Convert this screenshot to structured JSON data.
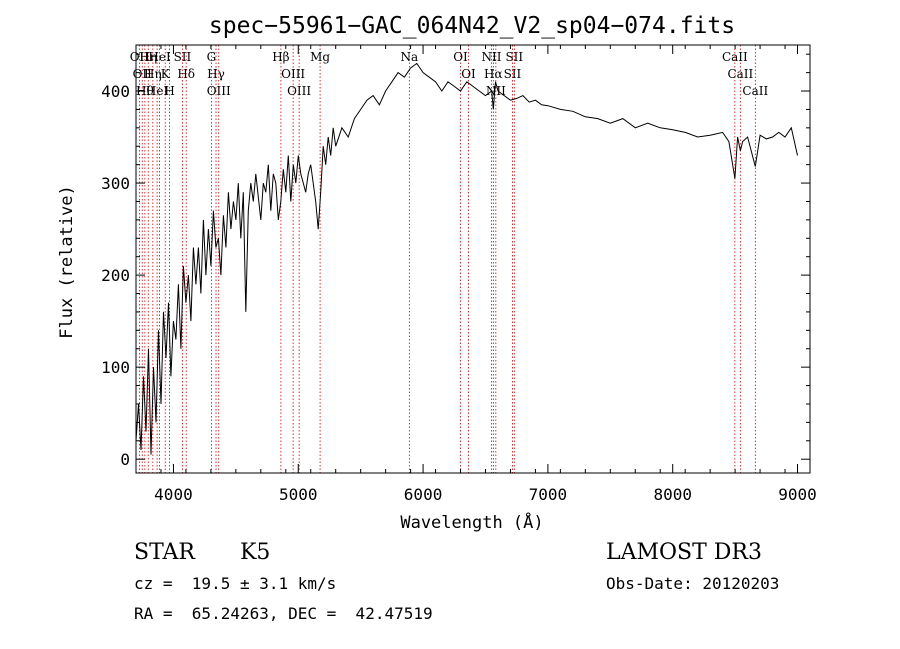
{
  "chart_data": {
    "type": "line",
    "title": "spec−55961−GAC_064N42_V2_sp04−074.fits",
    "xlabel": "Wavelength (Å)",
    "ylabel": "Flux (relative)",
    "xlim": [
      3700,
      9100
    ],
    "ylim": [
      -15,
      450
    ],
    "x_ticks": [
      4000,
      5000,
      6000,
      7000,
      8000,
      9000
    ],
    "y_ticks": [
      0,
      100,
      200,
      300,
      400
    ],
    "grid": false,
    "series": [
      {
        "name": "spectrum",
        "x": [
          3700,
          3720,
          3740,
          3760,
          3780,
          3800,
          3820,
          3840,
          3860,
          3880,
          3900,
          3920,
          3940,
          3960,
          3980,
          4000,
          4020,
          4040,
          4060,
          4080,
          4100,
          4120,
          4140,
          4160,
          4180,
          4200,
          4220,
          4240,
          4260,
          4280,
          4300,
          4320,
          4340,
          4360,
          4380,
          4400,
          4420,
          4440,
          4460,
          4480,
          4500,
          4520,
          4540,
          4560,
          4580,
          4600,
          4620,
          4640,
          4660,
          4680,
          4700,
          4720,
          4740,
          4760,
          4780,
          4800,
          4820,
          4840,
          4860,
          4880,
          4900,
          4920,
          4940,
          4960,
          4980,
          5000,
          5020,
          5040,
          5060,
          5080,
          5100,
          5120,
          5140,
          5160,
          5180,
          5200,
          5220,
          5240,
          5260,
          5280,
          5300,
          5350,
          5400,
          5450,
          5500,
          5550,
          5600,
          5650,
          5700,
          5750,
          5800,
          5850,
          5900,
          5950,
          6000,
          6050,
          6100,
          6150,
          6200,
          6250,
          6300,
          6350,
          6400,
          6450,
          6500,
          6550,
          6563,
          6580,
          6600,
          6650,
          6700,
          6750,
          6800,
          6850,
          6900,
          6950,
          7000,
          7100,
          7200,
          7300,
          7400,
          7500,
          7600,
          7700,
          7800,
          7900,
          8000,
          8100,
          8200,
          8300,
          8400,
          8450,
          8498,
          8520,
          8542,
          8560,
          8600,
          8662,
          8700,
          8750,
          8800,
          8850,
          8900,
          8950,
          9000
        ],
        "y": [
          20,
          60,
          10,
          90,
          30,
          120,
          5,
          100,
          40,
          140,
          60,
          160,
          110,
          170,
          90,
          150,
          130,
          190,
          120,
          210,
          170,
          200,
          150,
          230,
          190,
          230,
          180,
          260,
          200,
          250,
          210,
          270,
          230,
          240,
          200,
          265,
          230,
          290,
          250,
          280,
          260,
          300,
          240,
          290,
          160,
          270,
          300,
          280,
          310,
          285,
          260,
          300,
          290,
          320,
          270,
          310,
          300,
          260,
          280,
          315,
          290,
          330,
          280,
          320,
          300,
          330,
          310,
          300,
          290,
          310,
          320,
          300,
          280,
          250,
          290,
          340,
          320,
          350,
          330,
          360,
          340,
          360,
          350,
          370,
          380,
          390,
          395,
          385,
          400,
          410,
          420,
          415,
          425,
          430,
          420,
          415,
          410,
          400,
          410,
          405,
          400,
          410,
          405,
          400,
          395,
          400,
          380,
          410,
          400,
          395,
          390,
          392,
          395,
          388,
          390,
          385,
          384,
          380,
          378,
          372,
          370,
          365,
          370,
          360,
          365,
          360,
          358,
          355,
          350,
          352,
          355,
          345,
          305,
          350,
          335,
          345,
          350,
          318,
          352,
          348,
          350,
          355,
          350,
          360,
          330
        ]
      }
    ],
    "reference_lines": [
      {
        "wavelength": 3727,
        "label": "OII"
      },
      {
        "wavelength": 3750,
        "label": "OII"
      },
      {
        "wavelength": 3771,
        "label": "Hθ"
      },
      {
        "wavelength": 3798,
        "label": "Hη"
      },
      {
        "wavelength": 3835,
        "label": "Hη"
      },
      {
        "wavelength": 3869,
        "label": "HeI"
      },
      {
        "wavelength": 3889,
        "label": "HeI"
      },
      {
        "wavelength": 3934,
        "label": "K"
      },
      {
        "wavelength": 3969,
        "label": "H"
      },
      {
        "wavelength": 4072,
        "label": "SII"
      },
      {
        "wavelength": 4102,
        "label": "Hδ"
      },
      {
        "wavelength": 4304,
        "label": "G"
      },
      {
        "wavelength": 4341,
        "label": "Hγ"
      },
      {
        "wavelength": 4363,
        "label": "OIII"
      },
      {
        "wavelength": 4861,
        "label": "Hβ"
      },
      {
        "wavelength": 4959,
        "label": "OIII"
      },
      {
        "wavelength": 5007,
        "label": "OIII"
      },
      {
        "wavelength": 5175,
        "label": "Mg"
      },
      {
        "wavelength": 5890,
        "label": "Na"
      },
      {
        "wavelength": 6300,
        "label": "OI"
      },
      {
        "wavelength": 6364,
        "label": "OI"
      },
      {
        "wavelength": 6548,
        "label": "NII"
      },
      {
        "wavelength": 6563,
        "label": "Hα"
      },
      {
        "wavelength": 6583,
        "label": "NII"
      },
      {
        "wavelength": 6716,
        "label": "SII"
      },
      {
        "wavelength": 6731,
        "label": "SII"
      },
      {
        "wavelength": 8498,
        "label": "CaII"
      },
      {
        "wavelength": 8542,
        "label": "CaII"
      },
      {
        "wavelength": 8662,
        "label": "CaII"
      }
    ],
    "line_color": "#000000",
    "reference_line_color": "#cc0000"
  },
  "info": {
    "object_type": "STAR",
    "subclass": "K5",
    "survey": "LAMOST DR3",
    "redshift": "cz =  19.5 ± 3.1 km/s",
    "obs_date": "Obs-Date: 20120203",
    "coords": "RA =  65.24263, DEC =  42.47519"
  }
}
